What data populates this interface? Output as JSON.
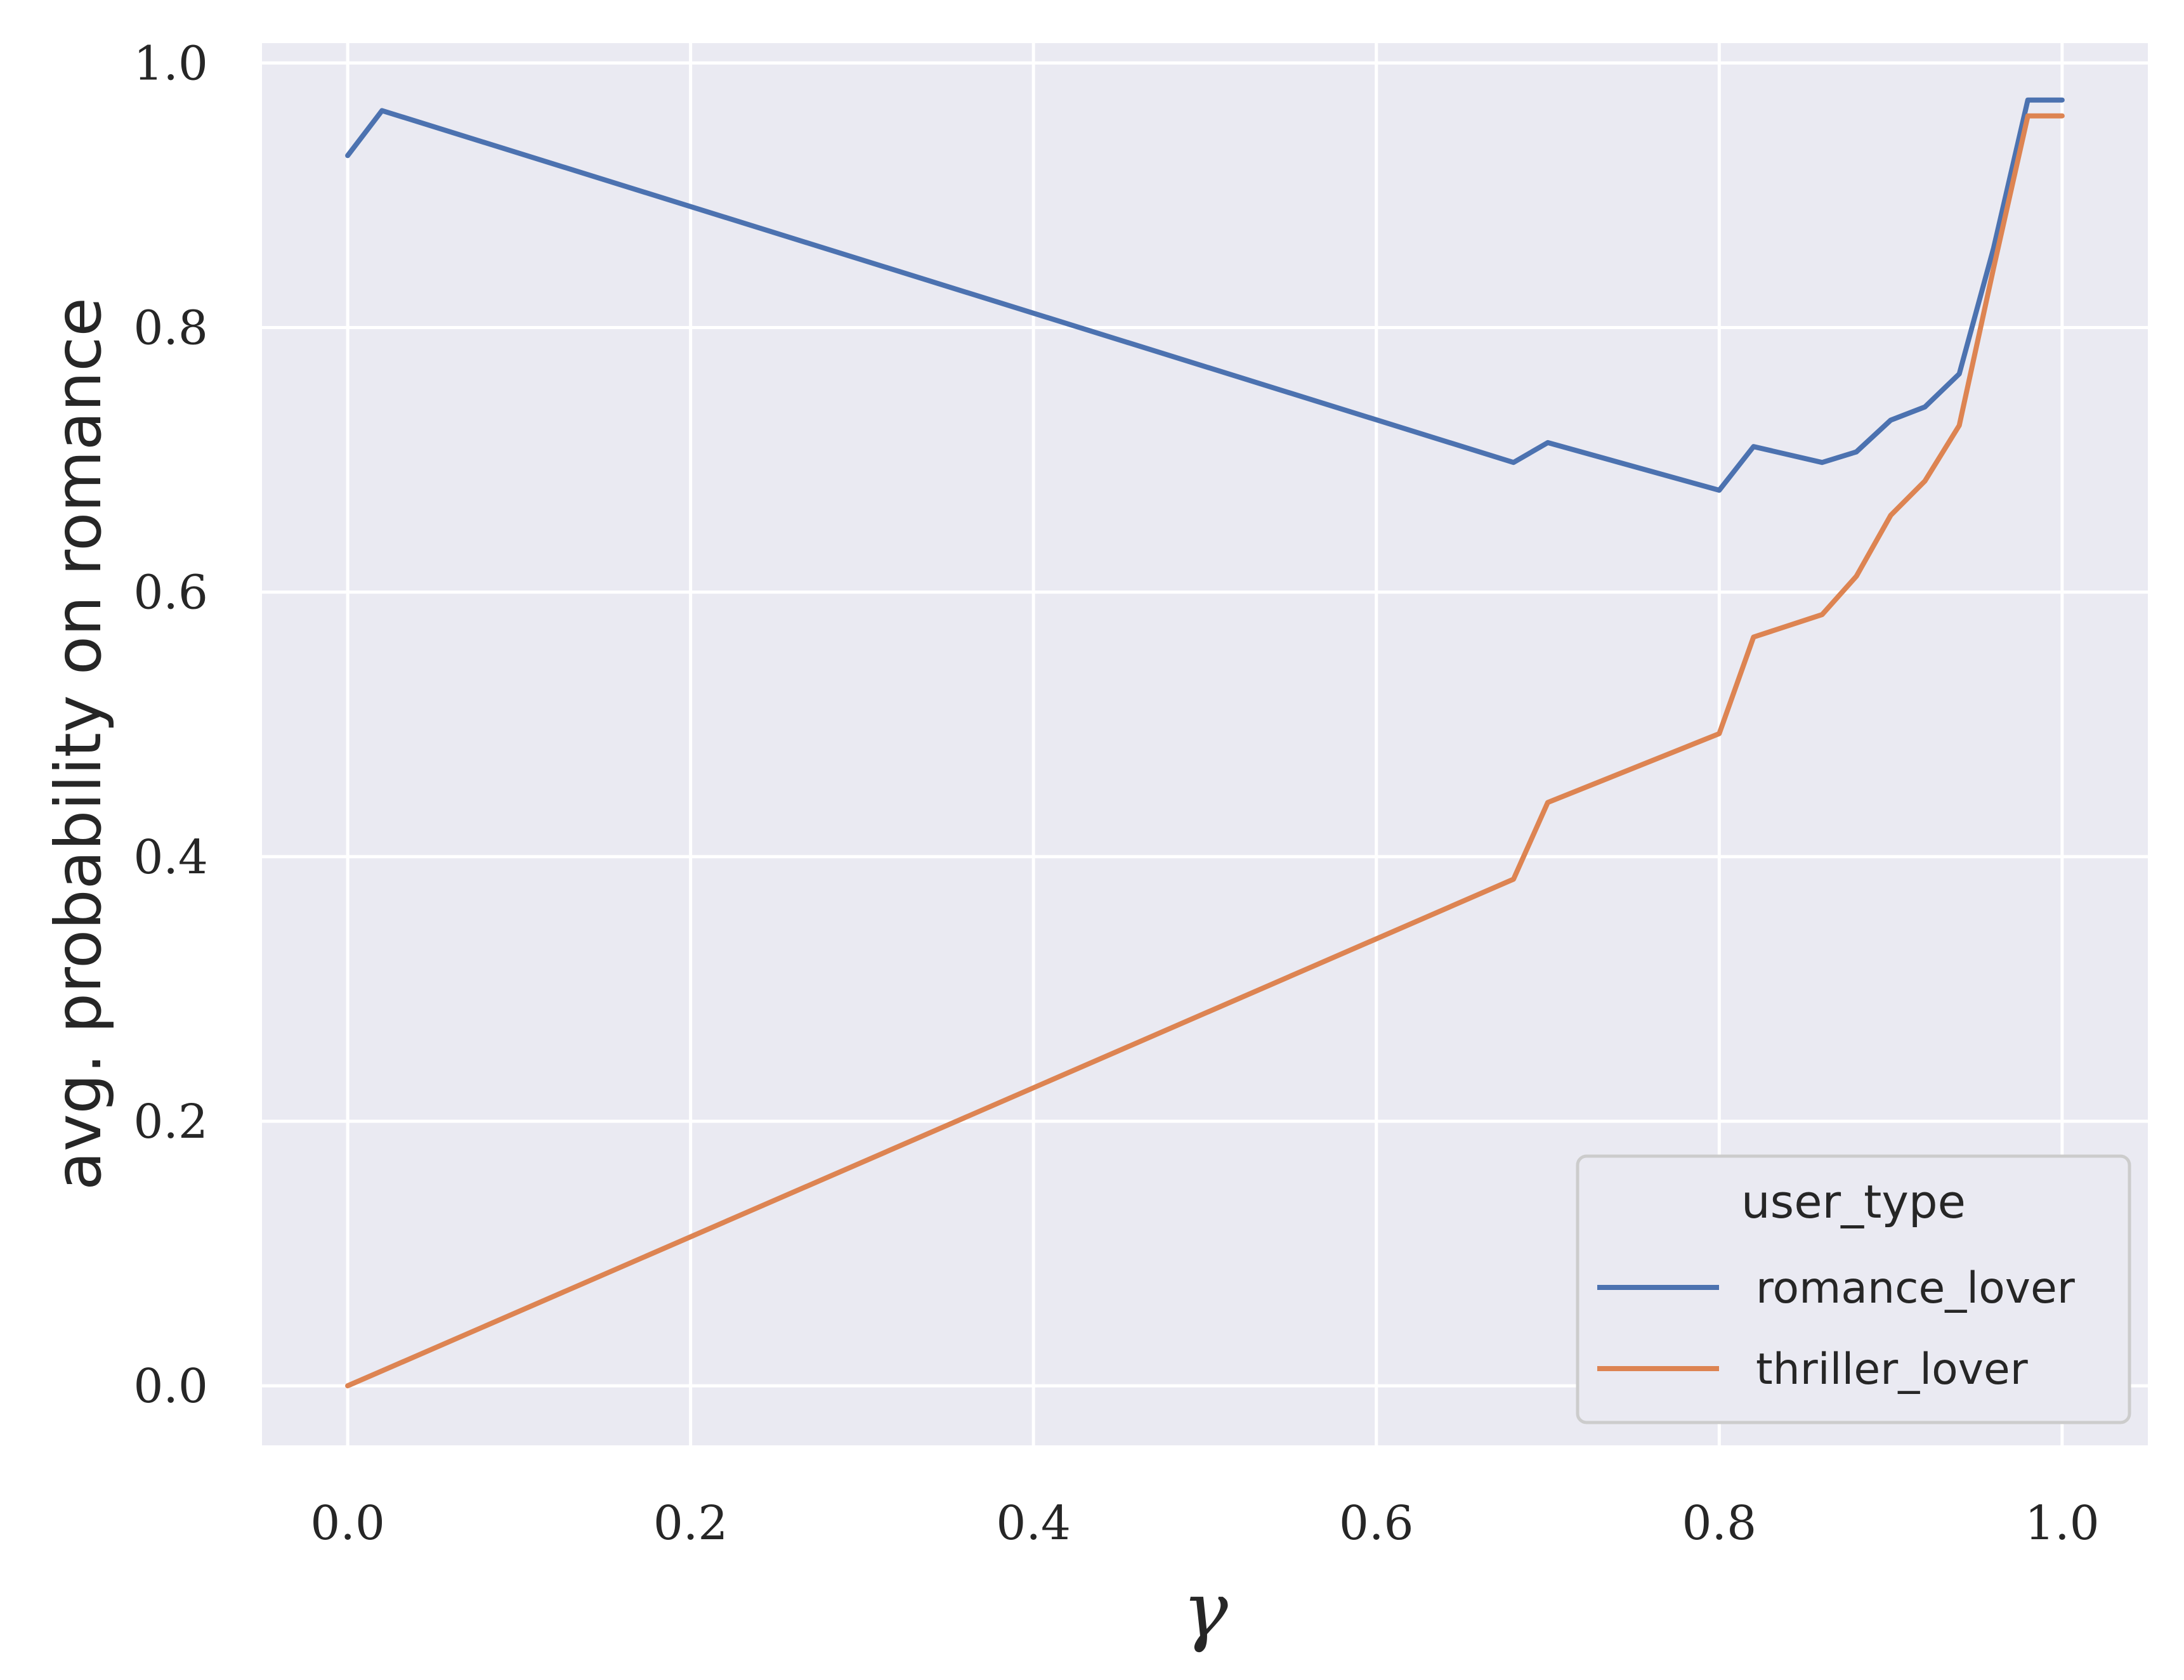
{
  "chart_data": {
    "type": "line",
    "xlabel": "γ",
    "ylabel": "avg. probability on romance",
    "xlim": [
      -0.05,
      1.05
    ],
    "ylim": [
      -0.045,
      1.015
    ],
    "xticks": [
      0.0,
      0.2,
      0.4,
      0.6,
      0.8,
      1.0
    ],
    "xtick_labels": [
      "0.0",
      "0.2",
      "0.4",
      "0.6",
      "0.8",
      "1.0"
    ],
    "yticks": [
      0.0,
      0.2,
      0.4,
      0.6,
      0.8,
      1.0
    ],
    "ytick_labels": [
      "0.0",
      "0.2",
      "0.4",
      "0.6",
      "0.8",
      "1.0"
    ],
    "grid": true,
    "background": "#eaeaf2",
    "legend": {
      "title": "user_type",
      "placement": "bottom-right"
    },
    "series": [
      {
        "name": "romance_lover",
        "color": "#4c72b0",
        "points": [
          [
            0.0,
            0.93
          ],
          [
            0.02,
            0.964
          ],
          [
            0.68,
            0.698
          ],
          [
            0.7,
            0.713
          ],
          [
            0.8,
            0.677
          ],
          [
            0.82,
            0.71
          ],
          [
            0.86,
            0.698
          ],
          [
            0.88,
            0.706
          ],
          [
            0.9,
            0.73
          ],
          [
            0.92,
            0.74
          ],
          [
            0.94,
            0.765
          ],
          [
            0.96,
            0.86
          ],
          [
            0.98,
            0.972
          ],
          [
            1.0,
            0.972
          ]
        ]
      },
      {
        "name": "thriller_lover",
        "color": "#dd8452",
        "points": [
          [
            0.0,
            0.0
          ],
          [
            0.68,
            0.383
          ],
          [
            0.7,
            0.441
          ],
          [
            0.8,
            0.493
          ],
          [
            0.82,
            0.566
          ],
          [
            0.86,
            0.583
          ],
          [
            0.88,
            0.612
          ],
          [
            0.9,
            0.658
          ],
          [
            0.92,
            0.684
          ],
          [
            0.94,
            0.726
          ],
          [
            0.96,
            0.845
          ],
          [
            0.98,
            0.96
          ],
          [
            1.0,
            0.96
          ]
        ]
      }
    ]
  }
}
